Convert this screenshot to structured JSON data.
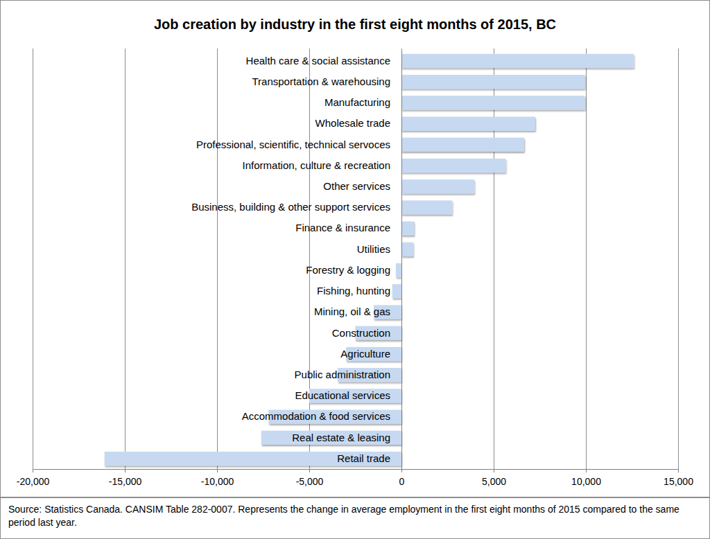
{
  "chart_data": {
    "type": "bar",
    "title": "Job creation by industry in the first eight months of 2015, BC",
    "orientation": "horizontal",
    "categories": [
      "Health care & social assistance",
      "Transportation & warehousing",
      "Manufacturing",
      "Wholesale trade",
      "Professional, scientific, technical servoces",
      "Information, culture & recreation",
      "Other services",
      "Business, building & other support services",
      "Finance & insurance",
      "Utilities",
      "Forestry & logging",
      "Fishing, hunting",
      "Mining, oil & gas",
      "Construction",
      "Agriculture",
      "Public administration",
      "Educational services",
      "Accommodation & food services",
      "Real estate & leasing",
      "Retail trade"
    ],
    "values": [
      12600,
      9950,
      9950,
      7250,
      6650,
      5650,
      3950,
      2750,
      700,
      650,
      -300,
      -500,
      -1500,
      -2500,
      -3000,
      -3450,
      -5000,
      -7200,
      -7600,
      -16100
    ],
    "color": "#c6d9f1",
    "xlim": [
      -20000,
      15000
    ],
    "xticks": [
      {
        "value": -20000,
        "label": "-20,000"
      },
      {
        "value": -15000,
        "label": "-15,000"
      },
      {
        "value": -10000,
        "label": "-10,000"
      },
      {
        "value": -5000,
        "label": "-5,000"
      },
      0,
      {
        "value": 5000,
        "label": "5,000"
      },
      {
        "value": 10000,
        "label": "10,000"
      },
      {
        "value": 15000,
        "label": "15,000"
      }
    ],
    "grid": true,
    "annotations": [
      "Source: Statistics Canada. CANSIM Table 282-0007. Represents the change in average employment in the first eight months of 2015 compared to the same period last year."
    ]
  }
}
